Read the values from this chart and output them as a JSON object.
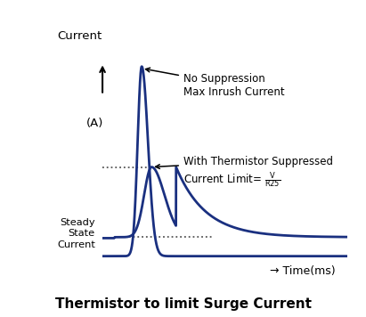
{
  "title": "Thermistor to limit Surge Current",
  "title_fontsize": 11,
  "title_fontweight": "bold",
  "ylabel_top": "Current",
  "ylabel_unit": "(A)",
  "xlabel": "→ Time(ms)",
  "curve_color": "#1a3080",
  "curve_linewidth": 2.0,
  "steady_state_level": 0.1,
  "suppressed_peak": 0.47,
  "unsuppressed_peak": 1.0,
  "annotation_fontsize": 8.5,
  "dashed_color": "#555555",
  "background_color": "#ffffff",
  "xlim": [
    0,
    10
  ],
  "ylim": [
    -0.02,
    1.15
  ]
}
